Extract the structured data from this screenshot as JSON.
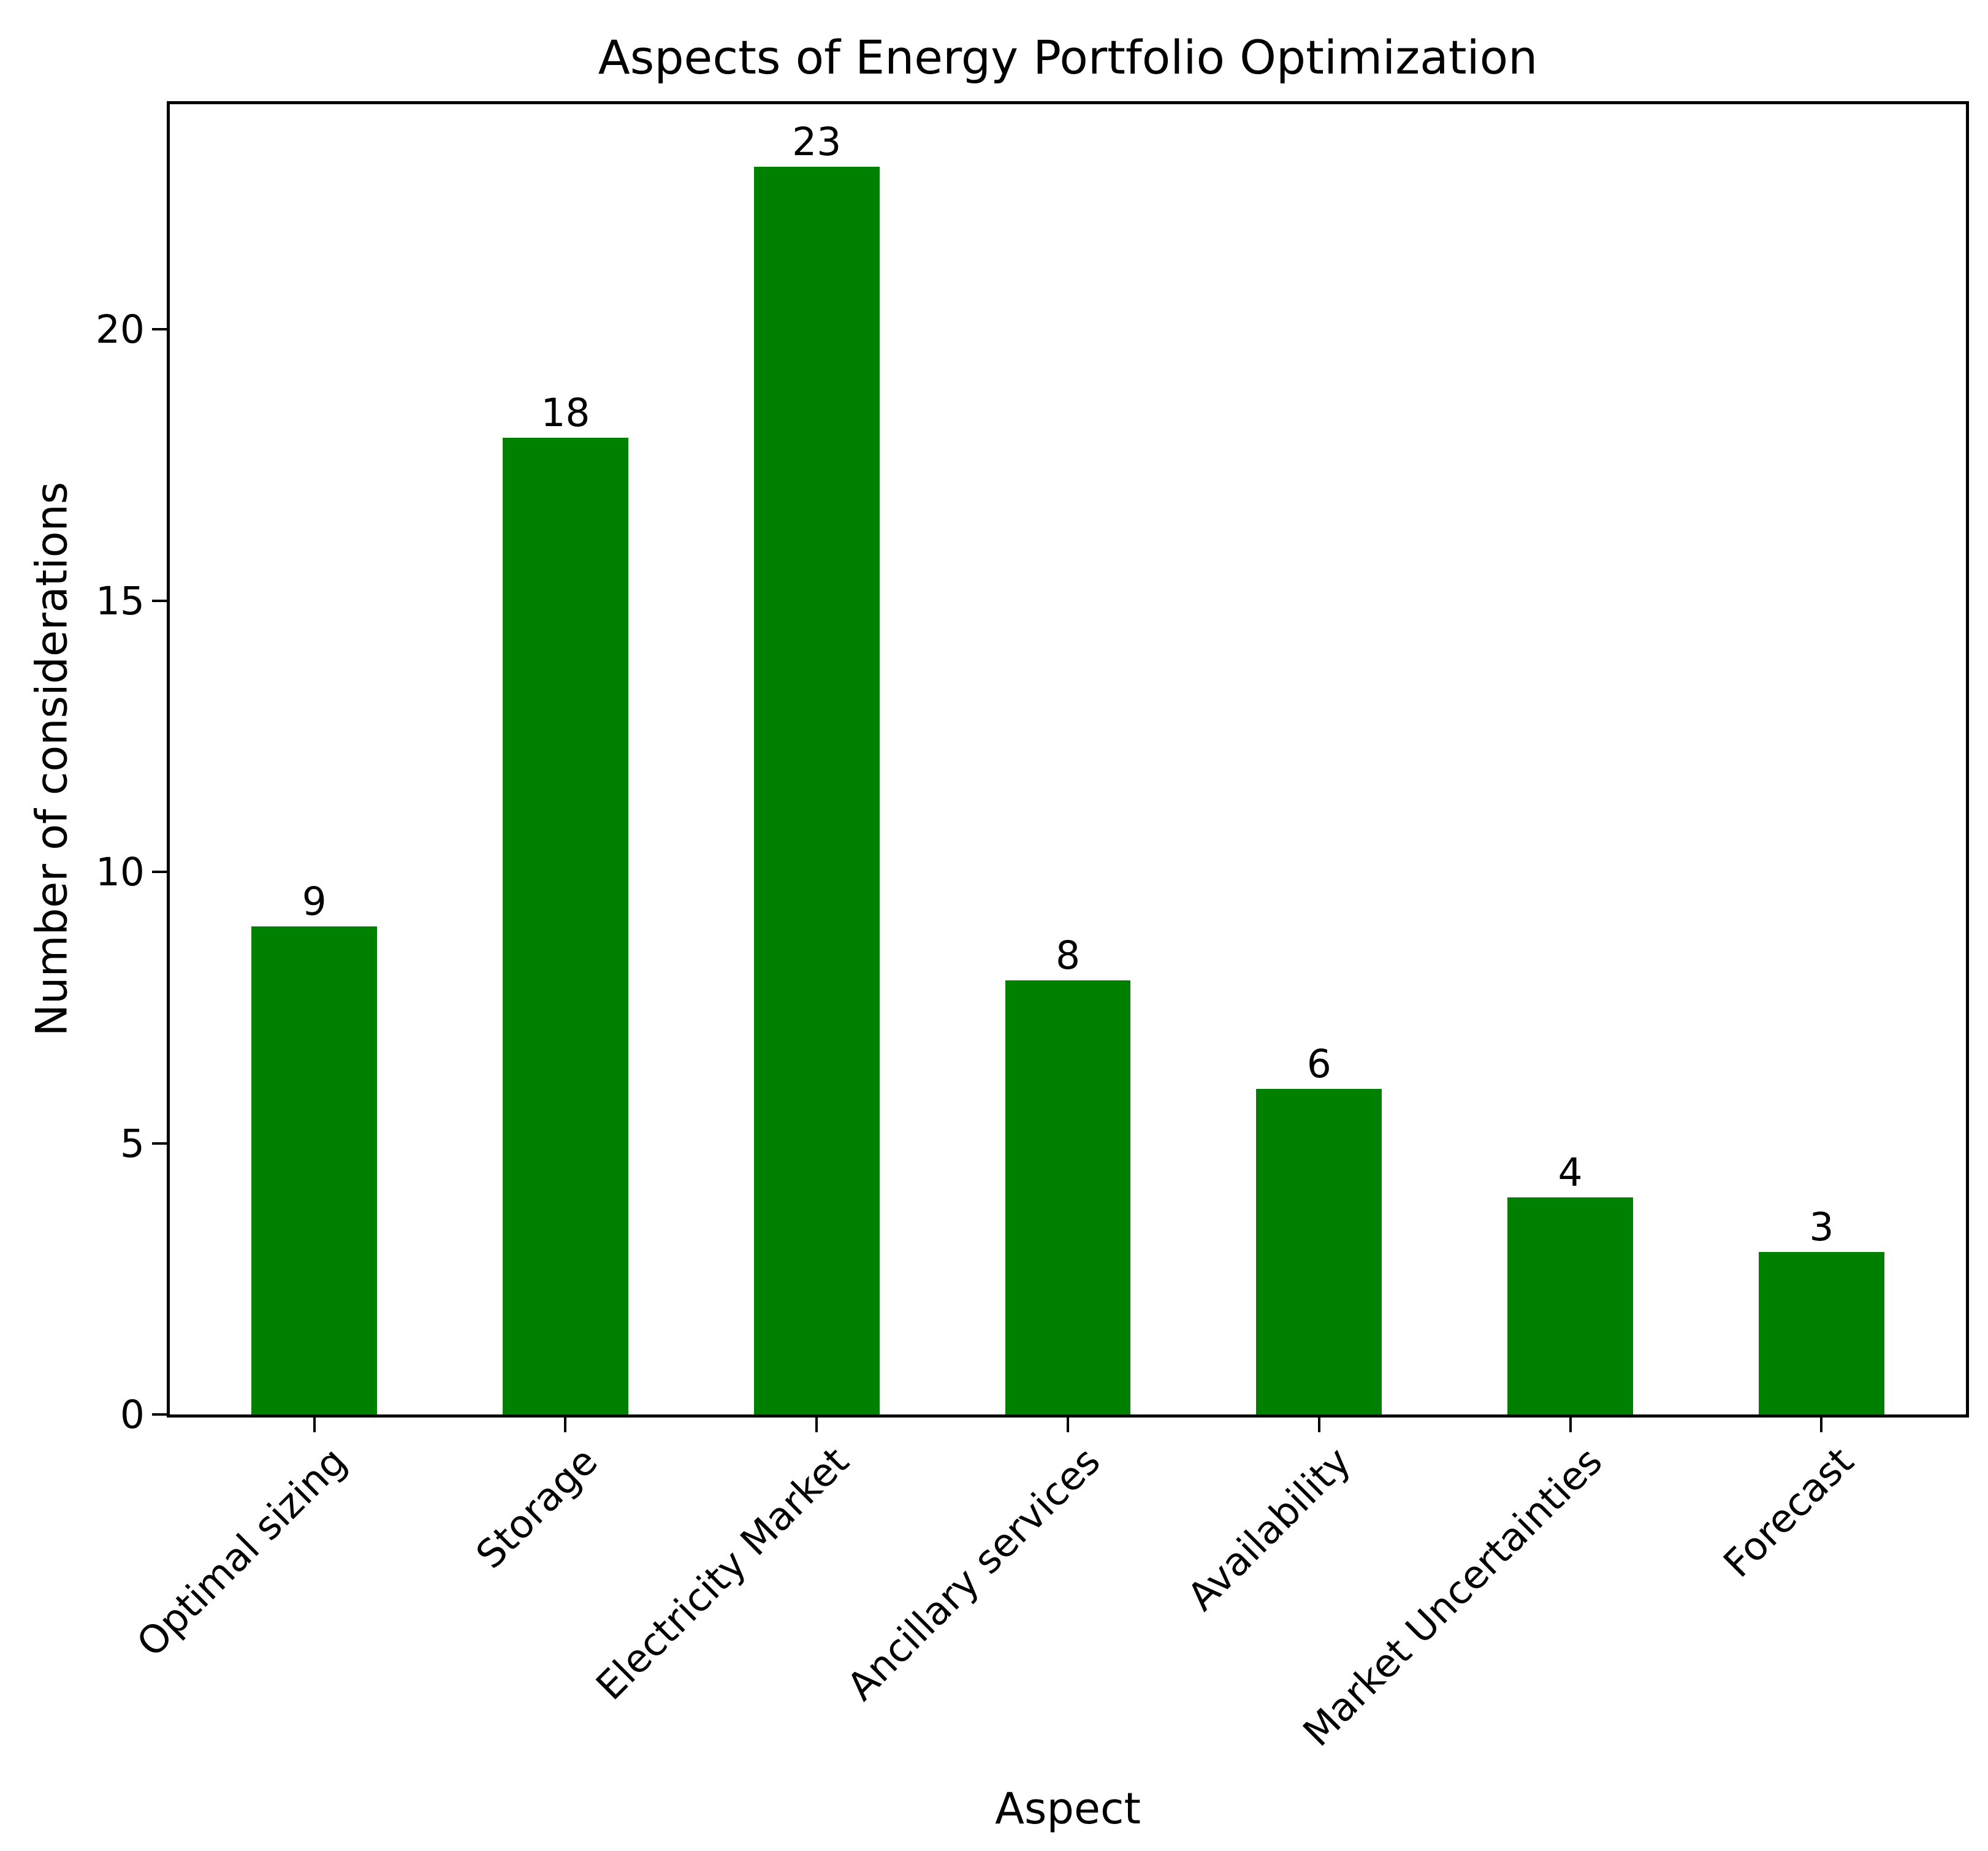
{
  "chart_data": {
    "type": "bar",
    "title": "Aspects of Energy Portfolio Optimization",
    "xlabel": "Aspect",
    "ylabel": "Number of considerations",
    "categories": [
      "Optimal sizing",
      "Storage",
      "Electricity Market",
      "Ancillary services",
      "Availability",
      "Market Uncertainties",
      "Forecast"
    ],
    "values": [
      9,
      18,
      23,
      8,
      6,
      4,
      3
    ],
    "bar_labels": [
      "9",
      "18",
      "23",
      "8",
      "6",
      "4",
      "3"
    ],
    "bar_color": "#008000",
    "axis_color": "#000000",
    "yticks": [
      0,
      5,
      10,
      15,
      20
    ],
    "ylim": [
      0,
      24.15
    ],
    "x_tick_rotation": 45,
    "grid": false,
    "legend": "none"
  }
}
